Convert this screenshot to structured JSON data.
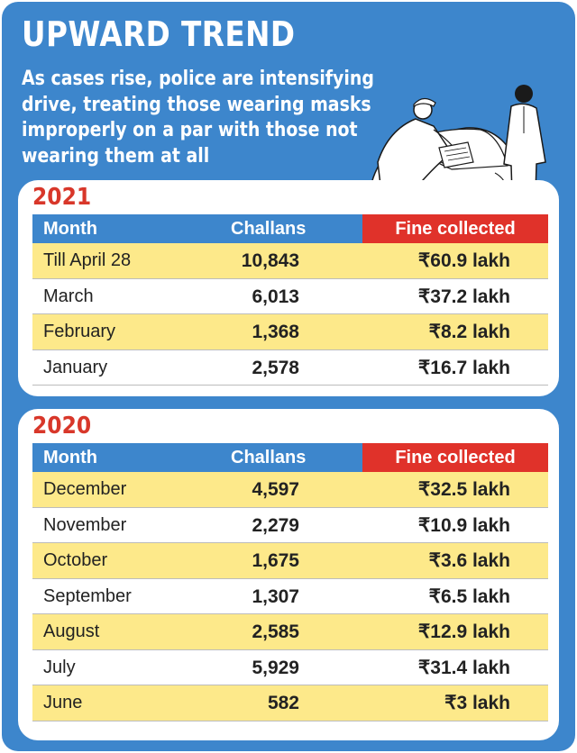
{
  "header": {
    "title": "UPWARD TREND",
    "subtitle": "As cases rise, police are intensifying drive, treating those wearing masks improperly on a par with those not wearing them at all"
  },
  "illustration": {
    "icon": "police-checking-car-illustration"
  },
  "columns": {
    "month": "Month",
    "challans": "Challans",
    "fine": "Fine collected"
  },
  "colors": {
    "background_blue": "#3d86cc",
    "header_blue": "#3d86cc",
    "fine_header_red": "#e0322a",
    "year_red": "#d8372a",
    "row_highlight_yellow": "#fde98a"
  },
  "tables": [
    {
      "year": "2021",
      "rows": [
        {
          "month": "Till April 28",
          "challans": "10,843",
          "fine": "₹60.9 lakh"
        },
        {
          "month": "March",
          "challans": "6,013",
          "fine": "₹37.2 lakh"
        },
        {
          "month": "February",
          "challans": "1,368",
          "fine": "₹8.2 lakh"
        },
        {
          "month": "January",
          "challans": "2,578",
          "fine": "₹16.7 lakh"
        }
      ]
    },
    {
      "year": "2020",
      "rows": [
        {
          "month": "December",
          "challans": "4,597",
          "fine": "₹32.5 lakh"
        },
        {
          "month": "November",
          "challans": "2,279",
          "fine": "₹10.9 lakh"
        },
        {
          "month": "October",
          "challans": "1,675",
          "fine": "₹3.6 lakh"
        },
        {
          "month": "September",
          "challans": "1,307",
          "fine": "₹6.5 lakh"
        },
        {
          "month": "August",
          "challans": "2,585",
          "fine": "₹12.9 lakh"
        },
        {
          "month": "July",
          "challans": "5,929",
          "fine": "₹31.4 lakh"
        },
        {
          "month": "June",
          "challans": "582",
          "fine": "₹3 lakh"
        }
      ]
    }
  ]
}
